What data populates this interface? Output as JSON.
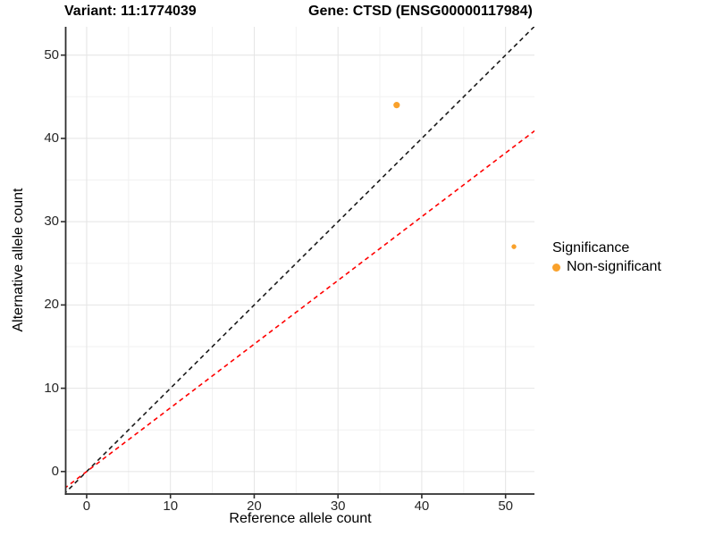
{
  "header": {
    "title_left": "Variant: 11:1774039",
    "title_right": "Gene: CTSD (ENSG00000117984)"
  },
  "chart_data": {
    "type": "scatter",
    "xlabel": "Reference allele count",
    "ylabel": "Alternative allele count",
    "x_ticks": [
      0,
      10,
      20,
      30,
      40,
      50
    ],
    "y_ticks": [
      0,
      10,
      20,
      30,
      40,
      50
    ],
    "x_minor": [
      5,
      15,
      25,
      35,
      45
    ],
    "y_minor": [
      5,
      15,
      25,
      35,
      45
    ],
    "xlim": [
      -2.45,
      53.45
    ],
    "ylim": [
      -2.7,
      53.4
    ],
    "grid": "on",
    "legend_position": "right",
    "points": [
      {
        "x": 37,
        "y": 44,
        "r": 3.6,
        "series": "Non-significant"
      },
      {
        "x": 51,
        "y": 27,
        "r": 2.7,
        "series": "Non-significant"
      }
    ],
    "lines": [
      {
        "name": "identity-line",
        "slope": 1,
        "intercept": 0,
        "color": "#1a1a1a",
        "style": "dashed"
      },
      {
        "name": "expected-ratio-line",
        "slope": 0.765,
        "intercept": 0,
        "color": "#ff0000",
        "style": "dashed"
      }
    ],
    "colors": {
      "point": "#F9A12B",
      "grid_major": "#E4E4E4",
      "grid_minor": "#F1F1F1",
      "axis": "#2e2e2e"
    },
    "legend": {
      "title": "Significance",
      "items": [
        {
          "label": "Non-significant",
          "color": "#F9A12B"
        }
      ]
    }
  }
}
